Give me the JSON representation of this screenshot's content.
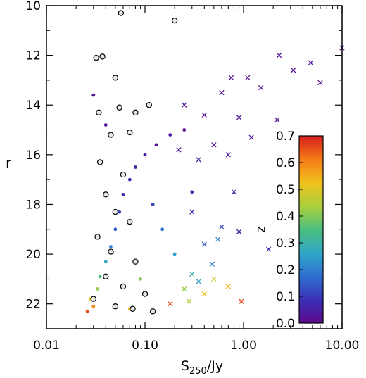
{
  "chart_data": {
    "type": "scatter",
    "xlabel_main": "S",
    "xlabel_sub": "250",
    "xlabel_unit": "/Jy",
    "ylabel": "r",
    "x_scale": "log",
    "xlim": [
      0.01,
      10.0
    ],
    "ylim": [
      23.0,
      10.0
    ],
    "x_ticks": [
      {
        "value": 0.01,
        "label": "0.01"
      },
      {
        "value": 0.1,
        "label": "0.10"
      },
      {
        "value": 1.0,
        "label": "1.00"
      },
      {
        "value": 10.0,
        "label": "10.00"
      }
    ],
    "y_ticks": [
      {
        "value": 10,
        "label": "10"
      },
      {
        "value": 12,
        "label": "12"
      },
      {
        "value": 14,
        "label": "14"
      },
      {
        "value": 16,
        "label": "16"
      },
      {
        "value": 18,
        "label": "18"
      },
      {
        "value": 20,
        "label": "20"
      },
      {
        "value": 22,
        "label": "22"
      }
    ],
    "colorbar": {
      "label": "z",
      "range": [
        0.0,
        0.7
      ],
      "ticks": [
        {
          "value": 0.0,
          "label": "0.0"
        },
        {
          "value": 0.1,
          "label": "0.1"
        },
        {
          "value": 0.2,
          "label": "0.2"
        },
        {
          "value": 0.3,
          "label": "0.3"
        },
        {
          "value": 0.4,
          "label": "0.4"
        },
        {
          "value": 0.5,
          "label": "0.5"
        },
        {
          "value": 0.6,
          "label": "0.6"
        },
        {
          "value": 0.7,
          "label": "0.7"
        }
      ],
      "colormap": [
        "#5b0a8c",
        "#3b2fb5",
        "#2f6fd0",
        "#2fa6c8",
        "#4cbf7f",
        "#a8cf3f",
        "#f0c21c",
        "#f57e17",
        "#d81f1f"
      ]
    },
    "series": [
      {
        "marker": "dot",
        "points": [
          {
            "x": 0.026,
            "y": 22.3,
            "z": 0.66
          },
          {
            "x": 0.03,
            "y": 22.1,
            "z": 0.6
          },
          {
            "x": 0.028,
            "y": 21.8,
            "z": 0.52
          },
          {
            "x": 0.033,
            "y": 21.4,
            "z": 0.42
          },
          {
            "x": 0.035,
            "y": 20.9,
            "z": 0.35
          },
          {
            "x": 0.04,
            "y": 20.3,
            "z": 0.27
          },
          {
            "x": 0.045,
            "y": 19.7,
            "z": 0.2
          },
          {
            "x": 0.05,
            "y": 19.0,
            "z": 0.15
          },
          {
            "x": 0.055,
            "y": 18.3,
            "z": 0.11
          },
          {
            "x": 0.06,
            "y": 17.6,
            "z": 0.08
          },
          {
            "x": 0.07,
            "y": 17.0,
            "z": 0.06
          },
          {
            "x": 0.08,
            "y": 16.5,
            "z": 0.05
          },
          {
            "x": 0.1,
            "y": 16.0,
            "z": 0.04
          },
          {
            "x": 0.13,
            "y": 15.6,
            "z": 0.03
          },
          {
            "x": 0.18,
            "y": 15.2,
            "z": 0.03
          },
          {
            "x": 0.25,
            "y": 15.0,
            "z": 0.02
          },
          {
            "x": 0.12,
            "y": 18.0,
            "z": 0.12
          },
          {
            "x": 0.15,
            "y": 19.0,
            "z": 0.18
          },
          {
            "x": 0.2,
            "y": 20.0,
            "z": 0.25
          },
          {
            "x": 0.09,
            "y": 21.0,
            "z": 0.4
          },
          {
            "x": 0.07,
            "y": 22.2,
            "z": 0.55
          },
          {
            "x": 0.04,
            "y": 14.8,
            "z": 0.02
          },
          {
            "x": 0.03,
            "y": 13.6,
            "z": 0.02
          },
          {
            "x": 0.3,
            "y": 17.5,
            "z": 0.1
          }
        ]
      },
      {
        "marker": "cross",
        "points": [
          {
            "x": 10.0,
            "y": 11.7,
            "z": 0.02
          },
          {
            "x": 2.3,
            "y": 12.0,
            "z": 0.02
          },
          {
            "x": 4.8,
            "y": 12.3,
            "z": 0.02
          },
          {
            "x": 3.2,
            "y": 12.6,
            "z": 0.02
          },
          {
            "x": 1.1,
            "y": 12.9,
            "z": 0.02
          },
          {
            "x": 0.75,
            "y": 12.9,
            "z": 0.02
          },
          {
            "x": 6.0,
            "y": 13.1,
            "z": 0.02
          },
          {
            "x": 0.6,
            "y": 13.5,
            "z": 0.02
          },
          {
            "x": 1.5,
            "y": 13.3,
            "z": 0.02
          },
          {
            "x": 0.25,
            "y": 14.0,
            "z": 0.02
          },
          {
            "x": 0.4,
            "y": 14.4,
            "z": 0.02
          },
          {
            "x": 0.9,
            "y": 14.5,
            "z": 0.03
          },
          {
            "x": 2.2,
            "y": 14.6,
            "z": 0.02
          },
          {
            "x": 1.2,
            "y": 15.3,
            "z": 0.03
          },
          {
            "x": 0.5,
            "y": 15.6,
            "z": 0.03
          },
          {
            "x": 0.22,
            "y": 15.8,
            "z": 0.04
          },
          {
            "x": 0.35,
            "y": 16.2,
            "z": 0.05
          },
          {
            "x": 0.7,
            "y": 16.0,
            "z": 0.04
          },
          {
            "x": 3.8,
            "y": 17.5,
            "z": 0.05
          },
          {
            "x": 0.8,
            "y": 17.5,
            "z": 0.05
          },
          {
            "x": 0.3,
            "y": 18.3,
            "z": 0.1
          },
          {
            "x": 0.6,
            "y": 18.9,
            "z": 0.12
          },
          {
            "x": 1.8,
            "y": 19.8,
            "z": 0.08
          },
          {
            "x": 0.9,
            "y": 19.1,
            "z": 0.05
          },
          {
            "x": 0.4,
            "y": 19.6,
            "z": 0.14
          },
          {
            "x": 0.55,
            "y": 19.4,
            "z": 0.2
          },
          {
            "x": 0.48,
            "y": 20.4,
            "z": 0.18
          },
          {
            "x": 0.3,
            "y": 20.8,
            "z": 0.3
          },
          {
            "x": 0.35,
            "y": 21.1,
            "z": 0.25
          },
          {
            "x": 0.25,
            "y": 21.4,
            "z": 0.42
          },
          {
            "x": 0.4,
            "y": 21.6,
            "z": 0.52
          },
          {
            "x": 0.28,
            "y": 21.9,
            "z": 0.45
          },
          {
            "x": 0.18,
            "y": 22.0,
            "z": 0.66
          },
          {
            "x": 0.95,
            "y": 21.9,
            "z": 0.66
          },
          {
            "x": 0.7,
            "y": 21.3,
            "z": 0.55
          },
          {
            "x": 0.5,
            "y": 21.0,
            "z": 0.48
          }
        ]
      },
      {
        "marker": "open-circle",
        "points": [
          {
            "x": 0.057,
            "y": 10.3
          },
          {
            "x": 0.2,
            "y": 10.6
          },
          {
            "x": 0.032,
            "y": 12.1
          },
          {
            "x": 0.037,
            "y": 12.05
          },
          {
            "x": 0.05,
            "y": 12.9
          },
          {
            "x": 0.034,
            "y": 14.3
          },
          {
            "x": 0.055,
            "y": 14.1
          },
          {
            "x": 0.08,
            "y": 14.3
          },
          {
            "x": 0.11,
            "y": 14.0
          },
          {
            "x": 0.045,
            "y": 15.2
          },
          {
            "x": 0.07,
            "y": 15.1
          },
          {
            "x": 0.035,
            "y": 16.3
          },
          {
            "x": 0.06,
            "y": 16.8
          },
          {
            "x": 0.04,
            "y": 17.6
          },
          {
            "x": 0.05,
            "y": 18.3
          },
          {
            "x": 0.07,
            "y": 18.7
          },
          {
            "x": 0.033,
            "y": 19.3
          },
          {
            "x": 0.045,
            "y": 19.9
          },
          {
            "x": 0.08,
            "y": 20.3
          },
          {
            "x": 0.04,
            "y": 20.9
          },
          {
            "x": 0.06,
            "y": 21.3
          },
          {
            "x": 0.1,
            "y": 21.6
          },
          {
            "x": 0.03,
            "y": 21.8
          },
          {
            "x": 0.05,
            "y": 22.1
          },
          {
            "x": 0.12,
            "y": 22.3
          },
          {
            "x": 0.075,
            "y": 22.2
          }
        ]
      }
    ]
  }
}
